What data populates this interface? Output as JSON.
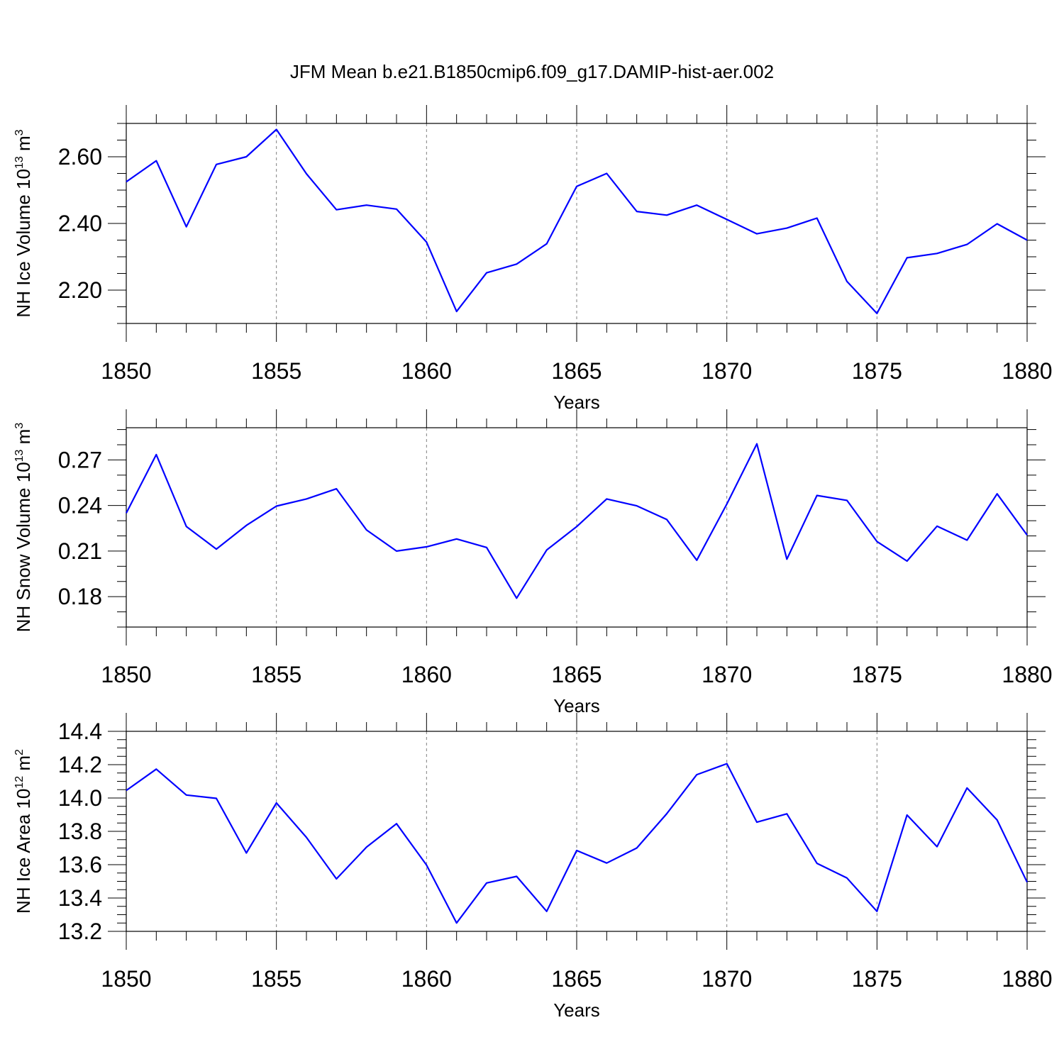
{
  "colors": {
    "series": "#0000ff",
    "frame": "#000000",
    "grid": "#808080"
  },
  "chart_data": {
    "type": "line",
    "title": "JFM Mean b.e21.B1850cmip6.f09_g17.DAMIP-hist-aer.002",
    "panels": [
      {
        "id": "ice-volume",
        "ylabel_main": "NH Ice Volume 10",
        "ylabel_exp": "13",
        "ylabel_unit": " m",
        "ylabel_unit_exp": "3",
        "xlabel": "Years",
        "xlim": [
          1850,
          1880
        ],
        "ylim": [
          2.1,
          2.7
        ],
        "yticks": [
          2.2,
          2.4,
          2.6
        ],
        "ytick_labels": [
          "2.20",
          "2.40",
          "2.60"
        ],
        "yminor_step": 0.05,
        "xticks": [
          1850,
          1855,
          1860,
          1865,
          1870,
          1875,
          1880
        ],
        "xtick_labels": [
          "1850",
          "1855",
          "1860",
          "1865",
          "1870",
          "1875",
          "1880"
        ],
        "x": [
          1850,
          1851,
          1852,
          1853,
          1854,
          1855,
          1856,
          1857,
          1858,
          1859,
          1860,
          1861,
          1862,
          1863,
          1864,
          1865,
          1866,
          1867,
          1868,
          1869,
          1870,
          1871,
          1872,
          1873,
          1874,
          1875,
          1876,
          1877,
          1878,
          1879,
          1880
        ],
        "y": [
          2.525,
          2.588,
          2.39,
          2.577,
          2.6,
          2.682,
          2.549,
          2.441,
          2.455,
          2.443,
          2.344,
          2.136,
          2.252,
          2.278,
          2.339,
          2.511,
          2.55,
          2.436,
          2.425,
          2.455,
          2.412,
          2.369,
          2.386,
          2.416,
          2.226,
          2.13,
          2.297,
          2.31,
          2.337,
          2.399,
          2.35
        ]
      },
      {
        "id": "snow-volume",
        "ylabel_main": "NH Snow Volume 10",
        "ylabel_exp": "13",
        "ylabel_unit": " m",
        "ylabel_unit_exp": "3",
        "xlabel": "Years",
        "xlim": [
          1850,
          1880
        ],
        "ylim": [
          0.16,
          0.2912
        ],
        "yticks": [
          0.18,
          0.21,
          0.24,
          0.27
        ],
        "ytick_labels": [
          "0.18",
          "0.21",
          "0.24",
          "0.27"
        ],
        "yminor_step": 0.01,
        "xticks": [
          1850,
          1855,
          1860,
          1865,
          1870,
          1875,
          1880
        ],
        "xtick_labels": [
          "1850",
          "1855",
          "1860",
          "1865",
          "1870",
          "1875",
          "1880"
        ],
        "x": [
          1850,
          1851,
          1852,
          1853,
          1854,
          1855,
          1856,
          1857,
          1858,
          1859,
          1860,
          1861,
          1862,
          1863,
          1864,
          1865,
          1866,
          1867,
          1868,
          1869,
          1870,
          1871,
          1872,
          1873,
          1874,
          1875,
          1876,
          1877,
          1878,
          1879,
          1880
        ],
        "y": [
          0.235,
          0.2735,
          0.2262,
          0.2113,
          0.2269,
          0.2396,
          0.2443,
          0.251,
          0.2239,
          0.21,
          0.2128,
          0.218,
          0.2124,
          0.179,
          0.2107,
          0.2261,
          0.2443,
          0.2398,
          0.2308,
          0.204,
          0.241,
          0.2806,
          0.2047,
          0.2466,
          0.2434,
          0.2163,
          0.2034,
          0.2264,
          0.2172,
          0.2477,
          0.2205
        ]
      },
      {
        "id": "ice-area",
        "ylabel_main": "NH Ice Area 10",
        "ylabel_exp": "12",
        "ylabel_unit": " m",
        "ylabel_unit_exp": "2",
        "xlabel": "Years",
        "xlim": [
          1850,
          1880
        ],
        "ylim": [
          13.2,
          14.4
        ],
        "yticks": [
          13.2,
          13.4,
          13.6,
          13.8,
          14.0,
          14.2,
          14.4
        ],
        "ytick_labels": [
          "13.2",
          "13.4",
          "13.6",
          "13.8",
          "14.0",
          "14.2",
          "14.4"
        ],
        "yminor_step": 0.05,
        "xticks": [
          1850,
          1855,
          1860,
          1865,
          1870,
          1875,
          1880
        ],
        "xtick_labels": [
          "1850",
          "1855",
          "1860",
          "1865",
          "1870",
          "1875",
          "1880"
        ],
        "x": [
          1850,
          1851,
          1852,
          1853,
          1854,
          1855,
          1856,
          1857,
          1858,
          1859,
          1860,
          1861,
          1862,
          1863,
          1864,
          1865,
          1866,
          1867,
          1868,
          1869,
          1870,
          1871,
          1872,
          1873,
          1874,
          1875,
          1876,
          1877,
          1878,
          1879,
          1880
        ],
        "y": [
          14.045,
          14.173,
          14.018,
          13.998,
          13.67,
          13.97,
          13.764,
          13.515,
          13.705,
          13.846,
          13.598,
          13.25,
          13.49,
          13.53,
          13.32,
          13.685,
          13.61,
          13.7,
          13.906,
          14.14,
          14.206,
          13.855,
          13.905,
          13.608,
          13.52,
          13.32,
          13.898,
          13.708,
          14.06,
          13.868,
          13.495
        ]
      }
    ]
  }
}
